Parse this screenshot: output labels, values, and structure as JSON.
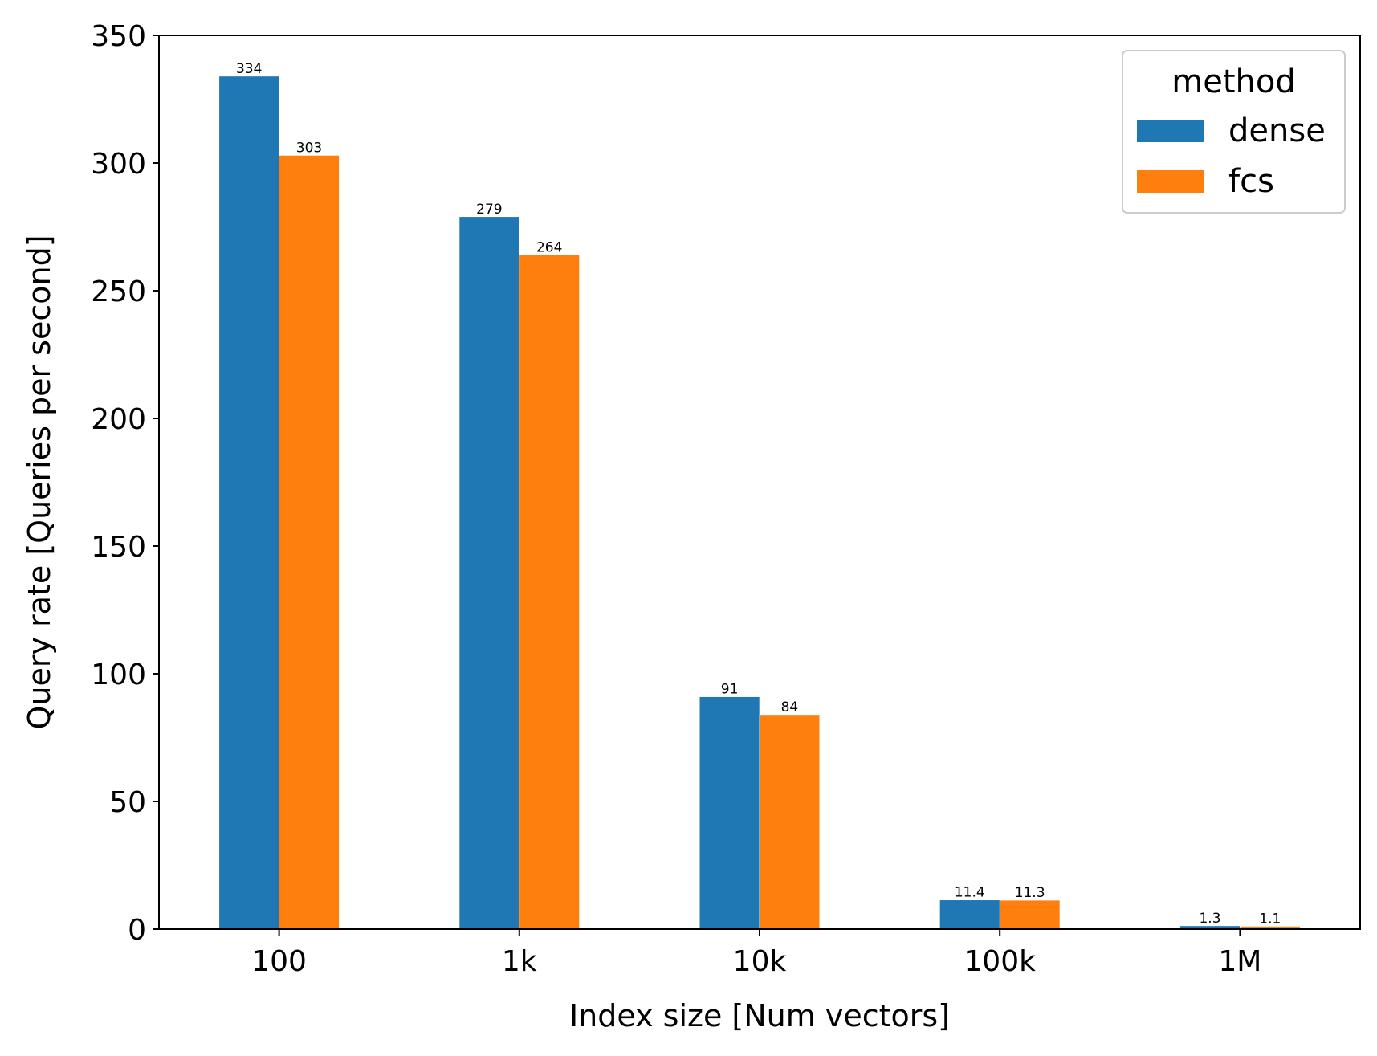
{
  "chart_data": {
    "type": "bar",
    "title": "",
    "xlabel": "Index size [Num vectors]",
    "ylabel": "Query rate [Queries per second]",
    "categories": [
      "100",
      "1k",
      "10k",
      "100k",
      "1M"
    ],
    "series": [
      {
        "name": "dense",
        "values": [
          334,
          279,
          91,
          11.4,
          1.3
        ],
        "labels": [
          "334",
          "279",
          "91",
          "11.4",
          "1.3"
        ],
        "color": "#1f77b4"
      },
      {
        "name": "fcs",
        "values": [
          303,
          264,
          84,
          11.3,
          1.1
        ],
        "labels": [
          "303",
          "264",
          "84",
          "11.3",
          "1.1"
        ],
        "color": "#ff7f0e"
      }
    ],
    "ylim": [
      0,
      350
    ],
    "yticks": [
      0,
      50,
      100,
      150,
      200,
      250,
      300,
      350
    ],
    "grid": false,
    "legend": {
      "title": "method",
      "position": "top-right"
    }
  }
}
